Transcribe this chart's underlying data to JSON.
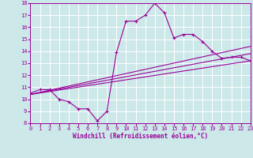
{
  "xlabel": "Windchill (Refroidissement éolien,°C)",
  "bg_color": "#cce8e8",
  "line_color": "#990099",
  "grid_color": "#ffffff",
  "xlim": [
    0,
    23
  ],
  "ylim": [
    8,
    18
  ],
  "xticks": [
    0,
    1,
    2,
    3,
    4,
    5,
    6,
    7,
    8,
    9,
    10,
    11,
    12,
    13,
    14,
    15,
    16,
    17,
    18,
    19,
    20,
    21,
    22,
    23
  ],
  "yticks": [
    8,
    9,
    10,
    11,
    12,
    13,
    14,
    15,
    16,
    17,
    18
  ],
  "curve1_x": [
    0,
    1,
    2,
    3,
    4,
    5,
    6,
    7,
    8,
    9,
    10,
    11,
    12,
    13,
    14,
    15,
    16,
    17,
    18,
    19,
    20,
    21,
    22,
    23
  ],
  "curve1_y": [
    10.5,
    10.8,
    10.8,
    10.0,
    9.8,
    9.2,
    9.2,
    8.2,
    9.0,
    13.9,
    16.5,
    16.5,
    17.0,
    18.0,
    17.2,
    15.1,
    15.4,
    15.4,
    14.8,
    14.0,
    13.4,
    13.5,
    13.5,
    13.2
  ],
  "line1_x": [
    0,
    23
  ],
  "line1_y": [
    10.4,
    13.2
  ],
  "line2_x": [
    0,
    23
  ],
  "line2_y": [
    10.4,
    13.8
  ],
  "line3_x": [
    0,
    23
  ],
  "line3_y": [
    10.4,
    14.4
  ]
}
